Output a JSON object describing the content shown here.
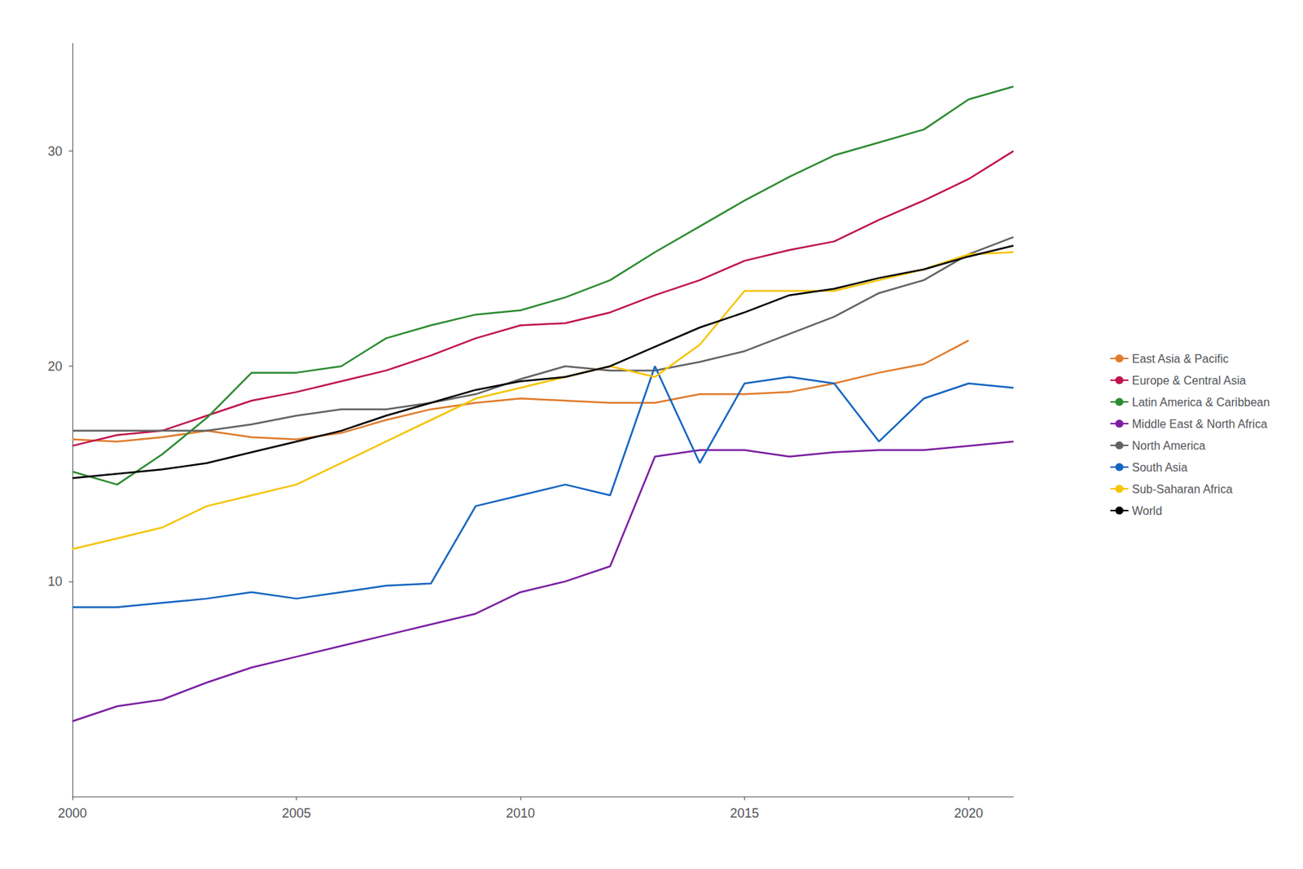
{
  "chart_data": {
    "type": "line",
    "x": [
      2000,
      2001,
      2002,
      2003,
      2004,
      2005,
      2006,
      2007,
      2008,
      2009,
      2010,
      2011,
      2012,
      2013,
      2014,
      2015,
      2016,
      2017,
      2018,
      2019,
      2020,
      2021
    ],
    "xlim": [
      2000,
      2021
    ],
    "xticks": [
      2000,
      2005,
      2010,
      2015,
      2020
    ],
    "ylim": [
      0,
      35
    ],
    "yticks": [
      10,
      20,
      30
    ],
    "grid": false,
    "legend": "right",
    "series": [
      {
        "name": "East Asia & Pacific",
        "color": "#E07B2A",
        "values": [
          16.6,
          16.5,
          16.7,
          17.0,
          16.7,
          16.6,
          16.9,
          17.5,
          18.0,
          18.3,
          18.5,
          18.4,
          18.3,
          18.3,
          18.7,
          18.7,
          18.8,
          19.2,
          19.7,
          20.1,
          21.2,
          null
        ]
      },
      {
        "name": "Europe & Central Asia",
        "color": "#C0144C",
        "values": [
          16.3,
          16.8,
          17.0,
          17.7,
          18.4,
          18.8,
          19.3,
          19.8,
          20.5,
          21.3,
          21.9,
          22.0,
          22.5,
          23.3,
          24.0,
          24.9,
          25.4,
          25.8,
          26.8,
          27.7,
          28.7,
          30.0
        ]
      },
      {
        "name": "Latin America & Caribbean",
        "color": "#2E8B32",
        "values": [
          15.1,
          14.5,
          15.9,
          17.6,
          19.7,
          19.7,
          20.0,
          21.3,
          21.9,
          22.4,
          22.6,
          23.2,
          24.0,
          25.3,
          26.5,
          27.7,
          28.8,
          29.8,
          30.4,
          31.0,
          32.4,
          33.0
        ]
      },
      {
        "name": "Middle East & North Africa",
        "color": "#7B1FA2",
        "values": [
          3.5,
          4.2,
          4.5,
          5.3,
          6.0,
          6.5,
          7.0,
          7.5,
          8.0,
          8.5,
          9.5,
          10.0,
          10.7,
          15.8,
          16.1,
          16.1,
          15.8,
          16.0,
          16.1,
          16.1,
          16.3,
          16.5
        ]
      },
      {
        "name": "North America",
        "color": "#636363",
        "values": [
          17.0,
          17.0,
          17.0,
          17.0,
          17.3,
          17.7,
          18.0,
          18.0,
          18.3,
          18.7,
          19.4,
          20.0,
          19.8,
          19.8,
          20.2,
          20.7,
          21.5,
          22.3,
          23.4,
          24.0,
          25.2,
          26.0
        ]
      },
      {
        "name": "South Asia",
        "color": "#1565C0",
        "values": [
          8.8,
          8.8,
          9.0,
          9.2,
          9.5,
          9.2,
          9.5,
          9.8,
          9.9,
          13.5,
          14.0,
          14.5,
          14.0,
          20.0,
          15.5,
          19.2,
          19.5,
          19.2,
          16.5,
          18.5,
          19.2,
          19.0
        ]
      },
      {
        "name": "Sub-Saharan Africa",
        "color": "#F5C400",
        "values": [
          11.5,
          12.0,
          12.5,
          13.5,
          14.0,
          14.5,
          15.5,
          16.5,
          17.5,
          18.5,
          19.0,
          19.5,
          20.0,
          19.5,
          21.0,
          23.5,
          23.5,
          23.5,
          24.0,
          24.5,
          25.2,
          25.3
        ]
      },
      {
        "name": "World",
        "color": "#000000",
        "values": [
          14.8,
          15.0,
          15.2,
          15.5,
          16.0,
          16.5,
          17.0,
          17.7,
          18.3,
          18.9,
          19.3,
          19.5,
          20.0,
          20.9,
          21.8,
          22.5,
          23.3,
          23.6,
          24.1,
          24.5,
          25.1,
          25.6
        ]
      }
    ]
  }
}
